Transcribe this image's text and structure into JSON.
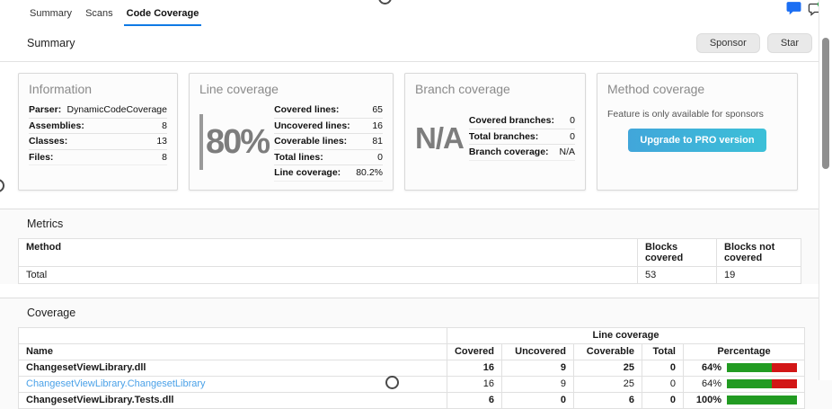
{
  "colors": {
    "accent_blue": "#0f7ae5",
    "link_blue": "#4aa1e8",
    "green": "#229b22",
    "red": "#d21616",
    "pro_btn_left": "#41a6da",
    "pro_btn_right": "#3cc0d8",
    "chat_blue": "#1b6ef3",
    "badge_green": "#2faf4e"
  },
  "tabs": {
    "items": [
      {
        "label": "Summary",
        "active": false
      },
      {
        "label": "Scans",
        "active": false
      },
      {
        "label": "Code Coverage",
        "active": true
      }
    ]
  },
  "summary_section": {
    "title": "Summary",
    "sponsor_label": "Sponsor",
    "star_label": "Star"
  },
  "cards": {
    "information": {
      "title": "Information",
      "rows": [
        {
          "label": "Parser:",
          "value": "DynamicCodeCoverage"
        },
        {
          "label": "Assemblies:",
          "value": "8"
        },
        {
          "label": "Classes:",
          "value": "13"
        },
        {
          "label": "Files:",
          "value": "8"
        }
      ]
    },
    "line_coverage": {
      "title": "Line coverage",
      "big_value": "80%",
      "rows": [
        {
          "label": "Covered lines:",
          "value": "65"
        },
        {
          "label": "Uncovered lines:",
          "value": "16"
        },
        {
          "label": "Coverable lines:",
          "value": "81"
        },
        {
          "label": "Total lines:",
          "value": "0"
        },
        {
          "label": "Line coverage:",
          "value": "80.2%"
        }
      ]
    },
    "branch_coverage": {
      "title": "Branch coverage",
      "big_value": "N/A",
      "rows": [
        {
          "label": "Covered branches:",
          "value": "0"
        },
        {
          "label": "Total branches:",
          "value": "0"
        },
        {
          "label": "Branch coverage:",
          "value": "N/A"
        }
      ]
    },
    "method_coverage": {
      "title": "Method coverage",
      "note": "Feature is only available for sponsors",
      "button_label": "Upgrade to PRO version"
    }
  },
  "metrics_section": {
    "title": "Metrics",
    "columns": {
      "method": "Method",
      "blocks_covered": "Blocks covered",
      "blocks_not_covered": "Blocks not covered"
    },
    "rows": [
      {
        "method": "Total",
        "blocks_covered": "53",
        "blocks_not_covered": "19"
      }
    ]
  },
  "coverage_section": {
    "title": "Coverage",
    "group_header": "Line coverage",
    "columns": {
      "name": "Name",
      "covered": "Covered",
      "uncovered": "Uncovered",
      "coverable": "Coverable",
      "total": "Total",
      "percentage": "Percentage"
    },
    "rows": [
      {
        "name": "ChangesetViewLibrary.dll",
        "covered": "16",
        "uncovered": "9",
        "coverable": "25",
        "total": "0",
        "percentage": "64%",
        "pct": 64,
        "bold": true,
        "link": false
      },
      {
        "name": "ChangesetViewLibrary.ChangesetLibrary",
        "covered": "16",
        "uncovered": "9",
        "coverable": "25",
        "total": "0",
        "percentage": "64%",
        "pct": 64,
        "bold": false,
        "link": true
      },
      {
        "name": "ChangesetViewLibrary.Tests.dll",
        "covered": "6",
        "uncovered": "0",
        "coverable": "6",
        "total": "0",
        "percentage": "100%",
        "pct": 100,
        "bold": true,
        "link": false
      }
    ]
  }
}
